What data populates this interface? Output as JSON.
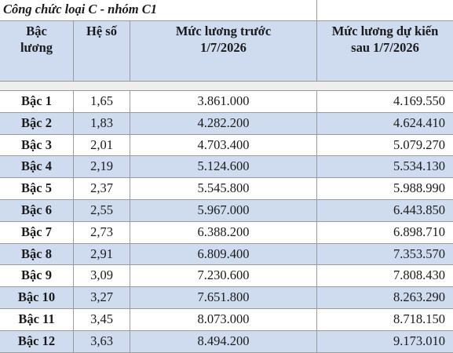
{
  "title": "Công chức loại C - nhóm C1",
  "headers": {
    "col1": "Bậc\nlương",
    "col2": "Hệ số",
    "col3": "Mức lương trước\n1/7/2026",
    "col4": "Mức lương dự kiến\nsau 1/7/2026"
  },
  "rows": [
    {
      "bac": "Bậc 1",
      "he_so": "1,65",
      "truoc": "3.861.000",
      "sau": "4.169.550"
    },
    {
      "bac": "Bậc 2",
      "he_so": "1,83",
      "truoc": "4.282.200",
      "sau": "4.624.410"
    },
    {
      "bac": "Bậc 3",
      "he_so": "2,01",
      "truoc": "4.703.400",
      "sau": "5.079.270"
    },
    {
      "bac": "Bậc 4",
      "he_so": "2,19",
      "truoc": "5.124.600",
      "sau": "5.534.130"
    },
    {
      "bac": "Bậc 5",
      "he_so": "2,37",
      "truoc": "5.545.800",
      "sau": "5.988.990"
    },
    {
      "bac": "Bậc 6",
      "he_so": "2,55",
      "truoc": "5.967.000",
      "sau": "6.443.850"
    },
    {
      "bac": "Bậc 7",
      "he_so": "2,73",
      "truoc": "6.388.200",
      "sau": "6.898.710"
    },
    {
      "bac": "Bậc 8",
      "he_so": "2,91",
      "truoc": "6.809.400",
      "sau": "7.353.570"
    },
    {
      "bac": "Bậc 9",
      "he_so": "3,09",
      "truoc": "7.230.600",
      "sau": "7.808.430"
    },
    {
      "bac": "Bậc 10",
      "he_so": "3,27",
      "truoc": "7.651.800",
      "sau": "8.263.290"
    },
    {
      "bac": "Bậc 11",
      "he_so": "3,45",
      "truoc": "8.073.000",
      "sau": "8.718.150"
    },
    {
      "bac": "Bậc 12",
      "he_so": "3,63",
      "truoc": "8.494.200",
      "sau": "9.173.010"
    }
  ]
}
